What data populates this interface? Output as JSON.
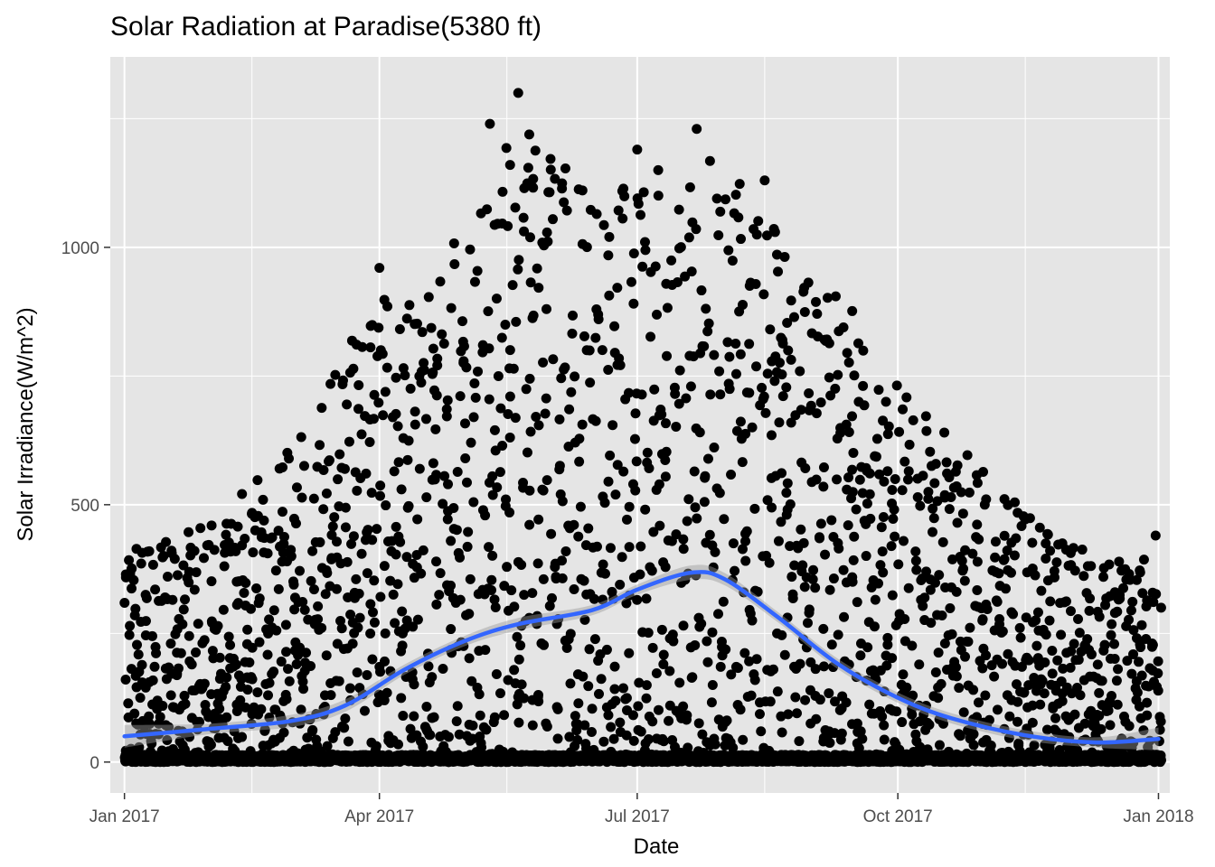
{
  "chart_data": {
    "type": "scatter",
    "title": "Solar Radiation at Paradise(5380 ft)",
    "xlabel": "Date",
    "ylabel": "Solar Irradiance(W/m^2)",
    "x_range": [
      "2016-12-27",
      "2018-01-05"
    ],
    "ylim": [
      -60,
      1370
    ],
    "x_ticks": [
      {
        "date": "2017-01-01",
        "label": "Jan 2017"
      },
      {
        "date": "2017-04-01",
        "label": "Apr 2017"
      },
      {
        "date": "2017-07-01",
        "label": "Jul 2017"
      },
      {
        "date": "2017-10-01",
        "label": "Oct 2017"
      },
      {
        "date": "2018-01-01",
        "label": "Jan 2018"
      }
    ],
    "x_minor_ticks": [
      "2017-02-15",
      "2017-05-16",
      "2017-08-15",
      "2017-11-15"
    ],
    "y_ticks": [
      0,
      500,
      1000
    ],
    "y_minor_ticks": [
      250,
      750,
      1250
    ],
    "grid": true,
    "colors": {
      "panel": "#e5e5e5",
      "grid": "#ffffff",
      "points": "#000000",
      "smooth_line": "#3366ff",
      "confidence_band": "#999999"
    },
    "seasonal_envelope": [
      {
        "date": "2017-01-01",
        "value": 430
      },
      {
        "date": "2017-02-01",
        "value": 480
      },
      {
        "date": "2017-03-01",
        "value": 640
      },
      {
        "date": "2017-04-01",
        "value": 950
      },
      {
        "date": "2017-05-01",
        "value": 1100
      },
      {
        "date": "2017-05-20",
        "value": 1300
      },
      {
        "date": "2017-06-15",
        "value": 1130
      },
      {
        "date": "2017-07-01",
        "value": 1180
      },
      {
        "date": "2017-07-22",
        "value": 1230
      },
      {
        "date": "2017-08-15",
        "value": 1130
      },
      {
        "date": "2017-09-01",
        "value": 1000
      },
      {
        "date": "2017-10-01",
        "value": 780
      },
      {
        "date": "2017-11-01",
        "value": 580
      },
      {
        "date": "2017-12-01",
        "value": 440
      },
      {
        "date": "2018-01-01",
        "value": 400
      }
    ],
    "notable_points": [
      {
        "date": "2017-05-20",
        "value": 1300
      },
      {
        "date": "2017-05-10",
        "value": 1240
      },
      {
        "date": "2017-07-22",
        "value": 1230
      },
      {
        "date": "2017-07-01",
        "value": 1190
      },
      {
        "date": "2017-08-15",
        "value": 1130
      },
      {
        "date": "2017-04-01",
        "value": 960
      },
      {
        "date": "2017-12-31",
        "value": 440
      }
    ],
    "series": [
      {
        "type": "smooth",
        "x": [
          "2017-01-01",
          "2017-02-01",
          "2017-03-01",
          "2017-03-20",
          "2017-04-10",
          "2017-05-01",
          "2017-05-20",
          "2017-06-15",
          "2017-07-01",
          "2017-07-20",
          "2017-08-01",
          "2017-08-20",
          "2017-09-10",
          "2017-10-01",
          "2017-10-20",
          "2017-11-15",
          "2017-12-10",
          "2018-01-01"
        ],
        "y": [
          50,
          65,
          80,
          110,
          180,
          235,
          268,
          295,
          335,
          368,
          355,
          280,
          190,
          125,
          85,
          52,
          38,
          45
        ],
        "band_halfwidth": [
          22,
          10,
          12,
          12,
          10,
          10,
          12,
          10,
          10,
          14,
          12,
          10,
          10,
          10,
          10,
          10,
          10,
          22
        ]
      }
    ]
  }
}
